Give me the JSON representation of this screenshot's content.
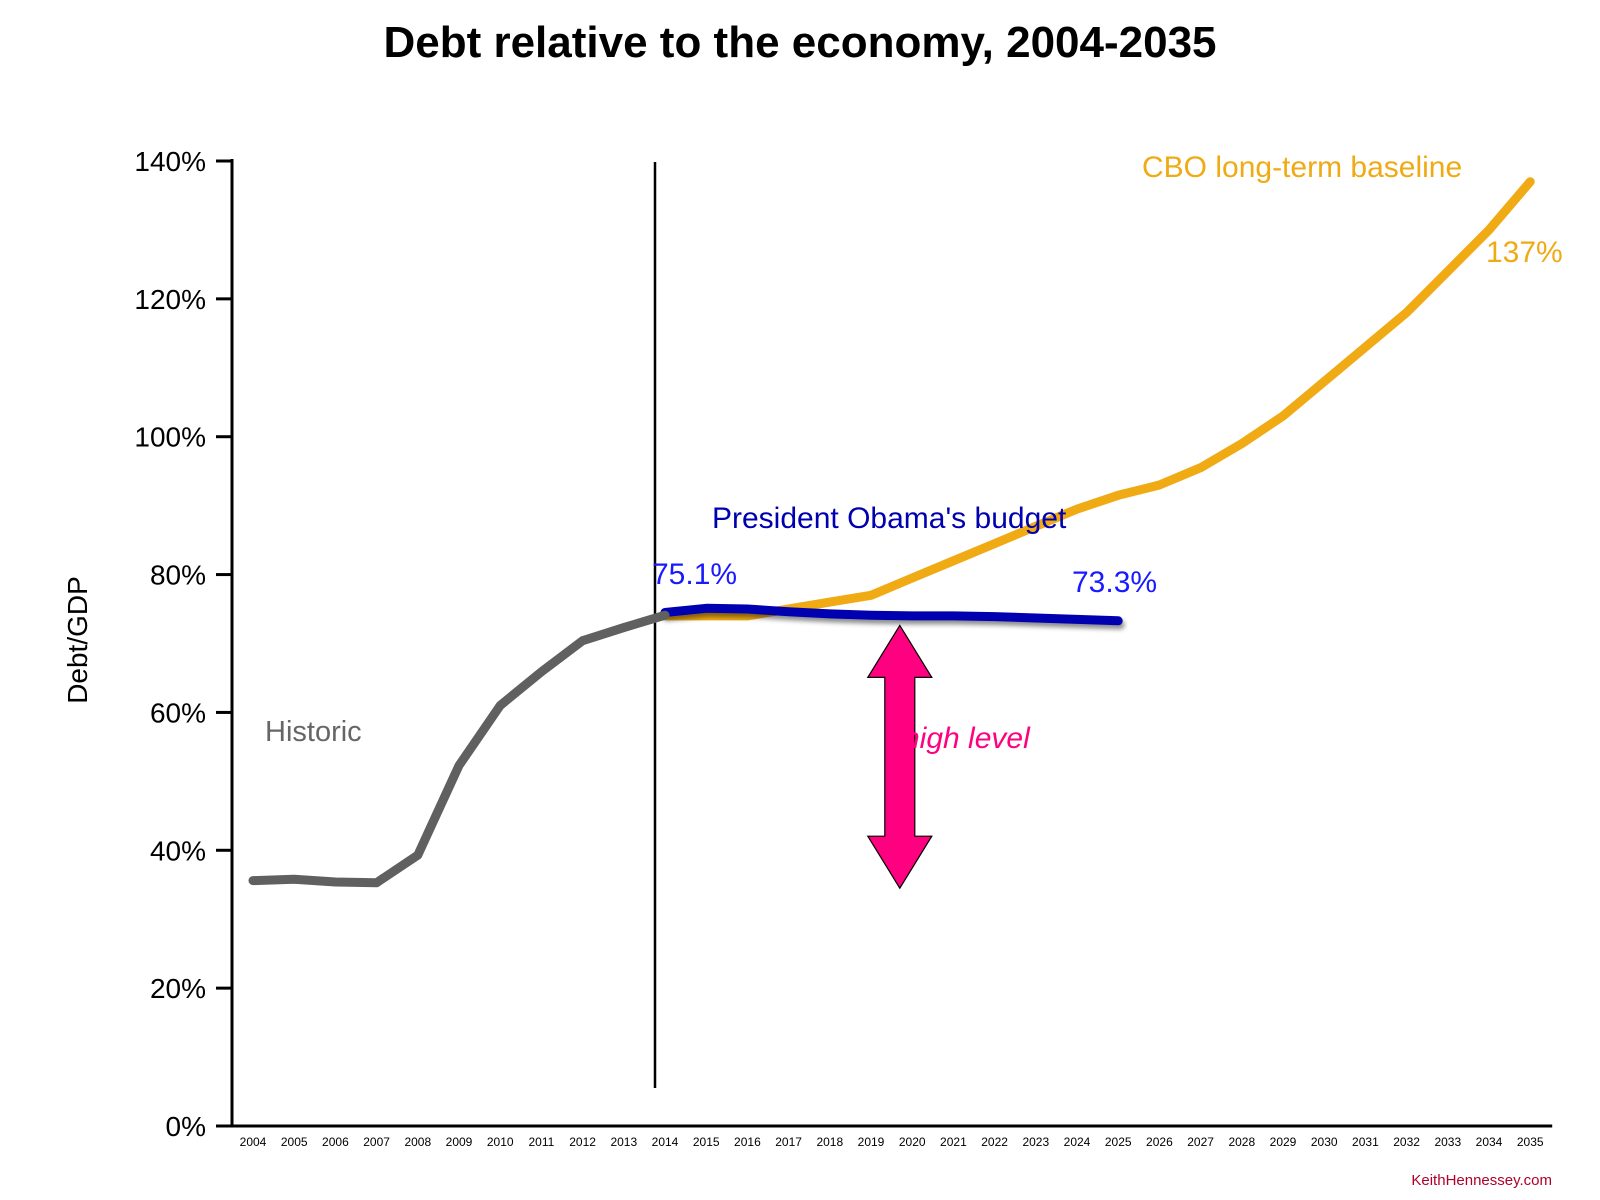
{
  "chart_data": {
    "type": "line",
    "title": "Debt relative to the economy, 2004-2035",
    "ylabel": "Debt/GDP",
    "xlabel": "",
    "ylim": [
      0,
      140
    ],
    "yticks": [
      "0%",
      "20%",
      "40%",
      "60%",
      "80%",
      "100%",
      "120%",
      "140%"
    ],
    "ytick_values": [
      0,
      20,
      40,
      60,
      80,
      100,
      120,
      140
    ],
    "x": [
      "2004",
      "2005",
      "2006",
      "2007",
      "2008",
      "2009",
      "2010",
      "2011",
      "2012",
      "2013",
      "2014",
      "2015",
      "2016",
      "2017",
      "2018",
      "2019",
      "2020",
      "2021",
      "2022",
      "2023",
      "2024",
      "2025",
      "2026",
      "2027",
      "2028",
      "2029",
      "2030",
      "2031",
      "2032",
      "2033",
      "2034",
      "2035"
    ],
    "divider_year": "2014",
    "grid": false,
    "series": [
      {
        "name": "Historic",
        "color": "#606060",
        "x": [
          "2004",
          "2005",
          "2006",
          "2007",
          "2008",
          "2009",
          "2010",
          "2011",
          "2012",
          "2013",
          "2014"
        ],
        "values": [
          35.6,
          35.8,
          35.4,
          35.3,
          39.3,
          52.3,
          61.0,
          65.9,
          70.4,
          72.3,
          74.1
        ]
      },
      {
        "name": "President Obama's budget",
        "color": "#0000b0",
        "x": [
          "2014",
          "2015",
          "2016",
          "2017",
          "2018",
          "2019",
          "2020",
          "2021",
          "2022",
          "2023",
          "2024",
          "2025"
        ],
        "values": [
          74.5,
          75.1,
          75.0,
          74.6,
          74.3,
          74.1,
          74.0,
          74.0,
          73.9,
          73.7,
          73.5,
          73.3
        ]
      },
      {
        "name": "CBO long-term baseline",
        "color": "#f0aa14",
        "x": [
          "2014",
          "2015",
          "2016",
          "2017",
          "2018",
          "2019",
          "2020",
          "2021",
          "2022",
          "2023",
          "2024",
          "2025",
          "2026",
          "2027",
          "2028",
          "2029",
          "2030",
          "2031",
          "2032",
          "2033",
          "2034",
          "2035"
        ],
        "values": [
          74.0,
          74.0,
          74.0,
          75.0,
          76.0,
          77.0,
          79.5,
          82.0,
          84.5,
          87.0,
          89.5,
          91.5,
          93.0,
          95.5,
          99.0,
          103.0,
          108.0,
          113.0,
          118.0,
          124.0,
          130.0,
          137.0
        ]
      }
    ],
    "annotations": {
      "historic_label": "Historic",
      "obama_label": "President Obama's budget",
      "cbo_label": "CBO long-term baseline",
      "value_2015": "75.1%",
      "value_2025": "73.3%",
      "value_2035": "137%",
      "arrow_label": "high level",
      "arrow_color": "#ff0080",
      "arrow_range": [
        34.5,
        73.5
      ],
      "arrow_year": "2019.7"
    },
    "credit": "KeithHennessey.com"
  }
}
